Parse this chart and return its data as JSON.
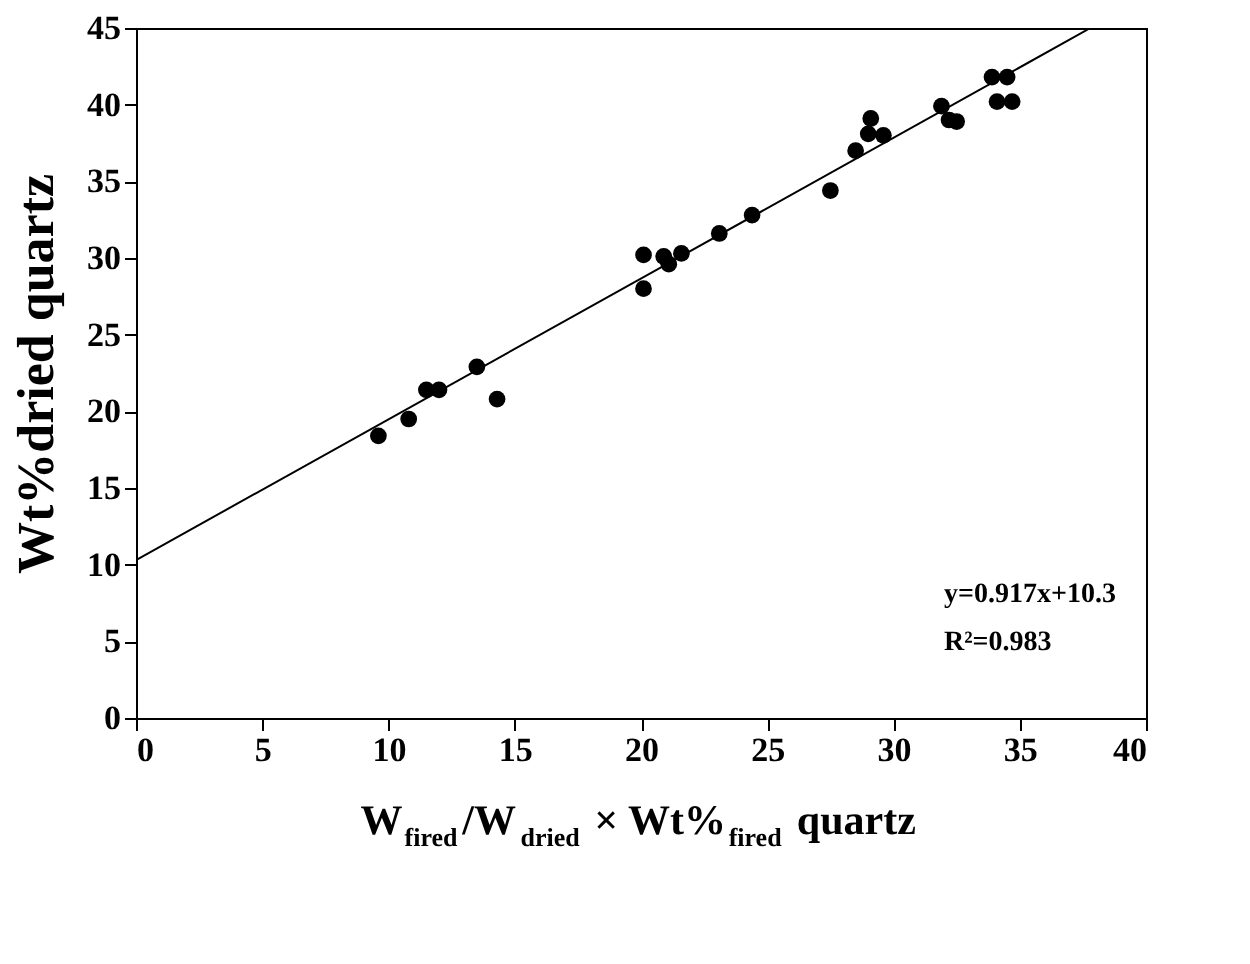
{
  "chart_data": {
    "type": "scatter",
    "xlabel": "W$_{fired}$/W$_{dried}$ × Wt%$_{fired}$ quartz",
    "ylabel": "Wt%dried quartz",
    "xlim": [
      0,
      40
    ],
    "xticks": [
      0,
      5,
      10,
      15,
      20,
      25,
      30,
      35,
      40
    ],
    "ylim": [
      0,
      45
    ],
    "yticks": [
      0,
      5,
      10,
      15,
      20,
      25,
      30,
      35,
      40,
      45
    ],
    "grid": false,
    "series": [
      {
        "color": "#000000",
        "marker": "circle",
        "x": [
          9.6,
          10.8,
          11.5,
          12.0,
          13.5,
          14.3,
          20.1,
          20.1,
          20.9,
          21.1,
          21.6,
          23.1,
          24.4,
          27.5,
          28.5,
          29.0,
          29.1,
          29.6,
          31.9,
          32.2,
          32.5,
          33.9,
          34.5,
          34.1,
          34.7
        ],
        "values": [
          18.4,
          19.5,
          21.4,
          21.4,
          22.9,
          20.8,
          30.2,
          28.0,
          30.1,
          29.6,
          30.3,
          31.6,
          32.8,
          34.4,
          37.0,
          38.1,
          39.1,
          38.0,
          39.9,
          39.0,
          38.9,
          41.8,
          41.8,
          40.2,
          40.2
        ]
      },
      {
        "type": "line",
        "color": "#000000",
        "line_style": "solid",
        "x": [
          0,
          37.8
        ],
        "values": [
          10.3,
          45.0
        ]
      }
    ],
    "annotations": [
      "y=0.917x+10.3",
      "R²=0.983"
    ]
  }
}
